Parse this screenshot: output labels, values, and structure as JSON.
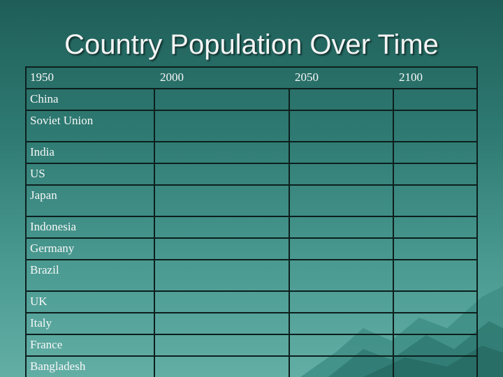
{
  "title": "Country Population Over Time",
  "table": {
    "headers": [
      "1950",
      "2000",
      "2050",
      "2100"
    ],
    "rows": [
      "China",
      "Soviet Union",
      "India",
      "US",
      "Japan",
      "Indonesia",
      "Germany",
      "Brazil",
      "UK",
      "Italy",
      "France",
      "Bangladesh"
    ]
  },
  "colors": {
    "background_top": "#1f5e58",
    "background_bottom": "#62aea5",
    "grid_lines": "#0d1f1d",
    "text": "#f8f8f8"
  }
}
